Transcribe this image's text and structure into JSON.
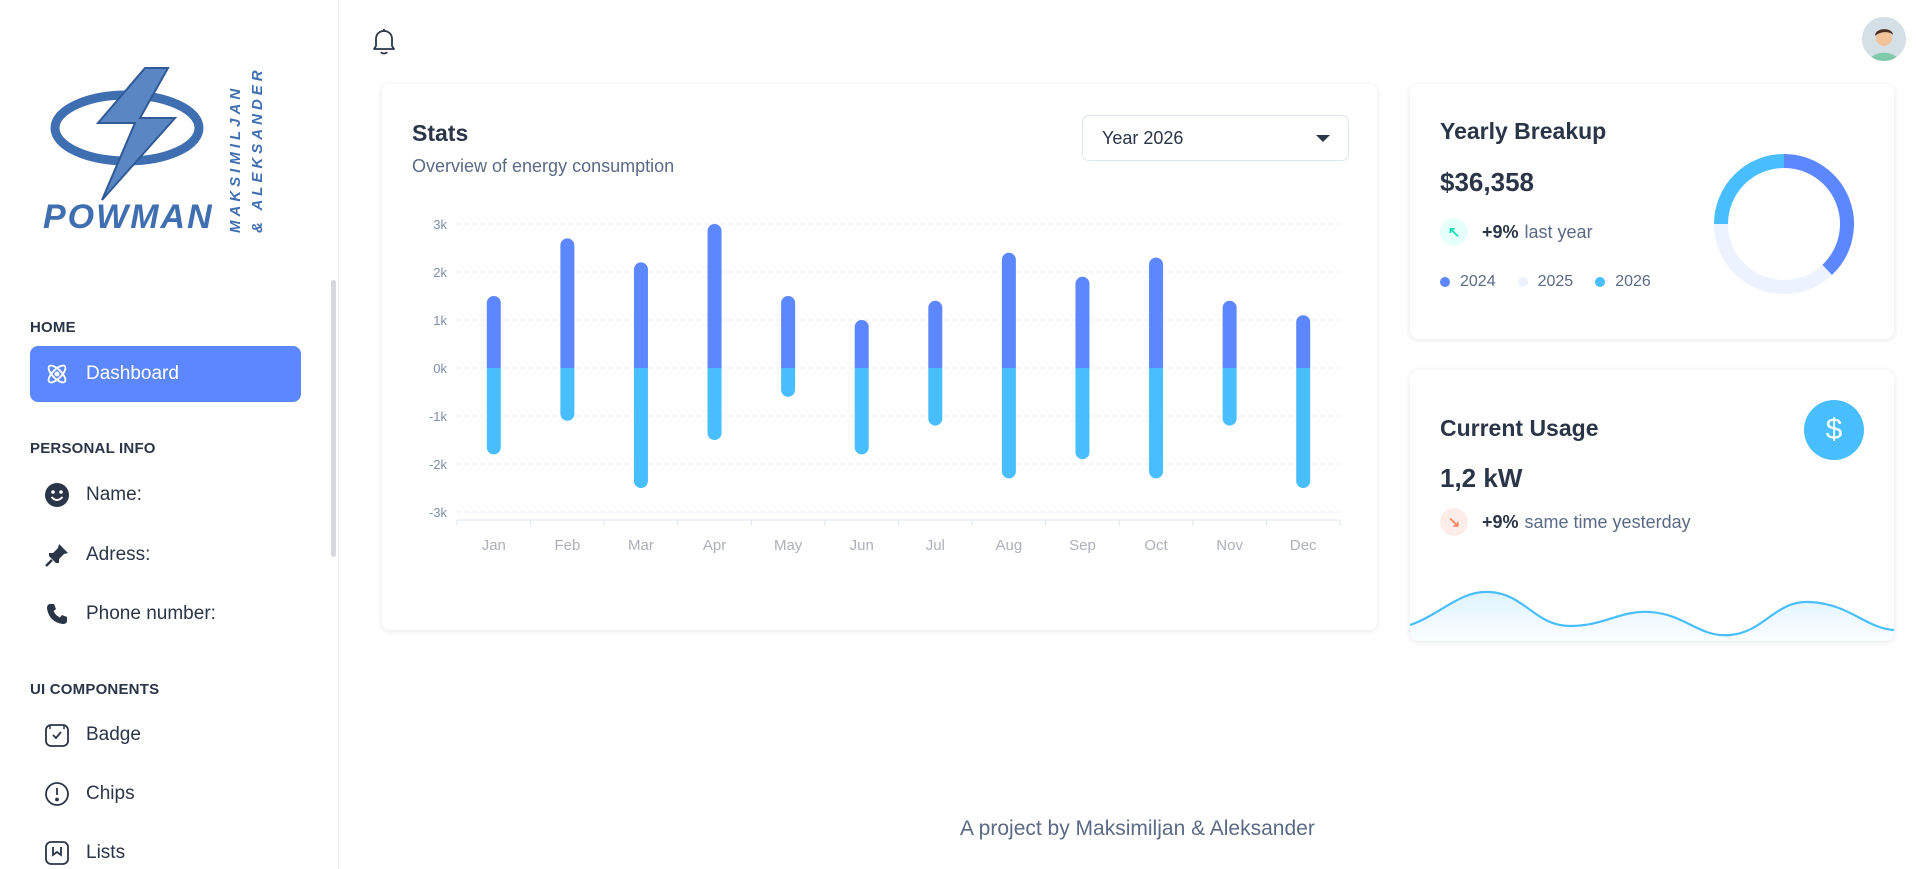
{
  "sidebar": {
    "logo": {
      "brand": "POWMAN",
      "line1": "MAKSIMILJAN",
      "line2": "& ALEKSANDER"
    },
    "sections": {
      "home": "HOME",
      "personal": "PERSONAL INFO",
      "ui": "UI COMPONENTS"
    },
    "items": {
      "dashboard": "Dashboard",
      "name": "Name:",
      "address": "Adress:",
      "phone": "Phone number:",
      "badge": "Badge",
      "chips": "Chips",
      "lists": "Lists"
    }
  },
  "stats": {
    "title": "Stats",
    "subtitle": "Overview of energy consumption",
    "year_select": "Year 2026"
  },
  "chart_data": {
    "type": "bar",
    "title": "Stats",
    "categories": [
      "Jan",
      "Feb",
      "Mar",
      "Apr",
      "May",
      "Jun",
      "Jul",
      "Aug",
      "Sep",
      "Oct",
      "Nov",
      "Dec"
    ],
    "series": [
      {
        "name": "",
        "values": [
          1500,
          2700,
          2200,
          3000,
          1500,
          1000,
          1400,
          2400,
          1900,
          2300,
          1400,
          1100
        ],
        "color": "#5d87ff"
      },
      {
        "name": "",
        "values": [
          -1800,
          -1100,
          -2500,
          -1500,
          -600,
          -1800,
          -1200,
          -2300,
          -1900,
          -2300,
          -1200,
          -2500
        ],
        "color": "#49beff"
      }
    ],
    "yticks": [
      "3k",
      "2k",
      "1k",
      "0k",
      "-1k",
      "-2k",
      "-3k"
    ],
    "ylim": [
      -3000,
      3000
    ],
    "grid": true
  },
  "yearly": {
    "title": "Yearly Breakup",
    "amount": "$36,358",
    "trend_pct": "+9%",
    "trend_text": "last year",
    "legend": [
      "2024",
      "2025",
      "2026"
    ],
    "colors": [
      "#5d87ff",
      "#ecf2ff",
      "#49beff"
    ],
    "donut_fractions": [
      0.38,
      0.37,
      0.25
    ]
  },
  "usage": {
    "title": "Current Usage",
    "value": "1,2 kW",
    "trend_pct": "+9%",
    "trend_text": "same time yesterday",
    "currency_icon": "$"
  },
  "footer": {
    "text": "A project by Maksimiljan & Aleksander"
  }
}
